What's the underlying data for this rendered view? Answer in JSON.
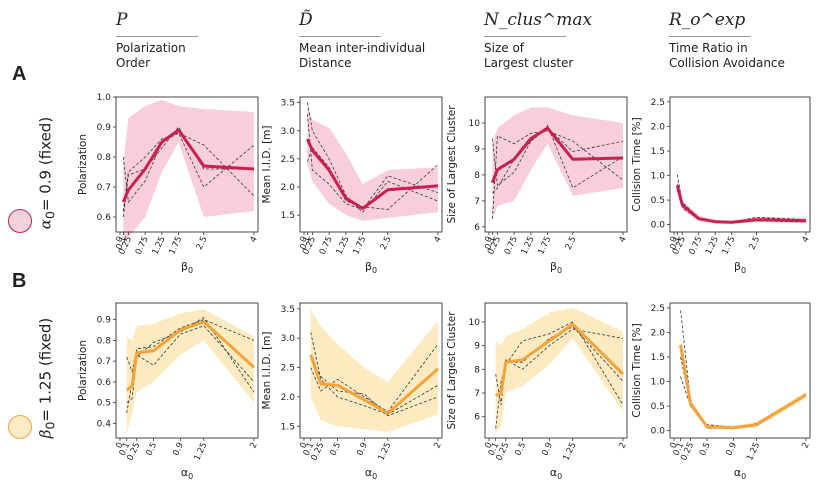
{
  "headers": [
    {
      "symbol": "P",
      "desc": "Polarization\nOrder"
    },
    {
      "symbol": "D̃",
      "desc": "Mean inter-individual\nDistance"
    },
    {
      "symbol": "N_clus^max",
      "desc": "Size of\nLargest cluster"
    },
    {
      "symbol": "R_o^exp",
      "desc": "Time Ratio in\nCollision Avoidance"
    }
  ],
  "rows": [
    {
      "letter": "A",
      "side_greek": "α",
      "side_sub": "0",
      "side_text": "= 0.9 (fixed)",
      "color": "#cc1f4e",
      "band": "#f7c6d3",
      "circle_fill": "#f4d2db"
    },
    {
      "letter": "B",
      "side_greek": "β",
      "side_sub": "0",
      "side_text": "= 1.25 (fixed)",
      "color": "#f5a33c",
      "band": "#fbe7b5",
      "circle_fill": "#fdebc4"
    }
  ],
  "chart_data": [
    {
      "type": "line",
      "row": 0,
      "col": 0,
      "ylabel": "Polarization",
      "xlabel": "β0",
      "ylim": [
        0.55,
        1.0
      ],
      "yticks": [
        0.6,
        0.7,
        0.8,
        0.9,
        1.0
      ],
      "x": [
        0.1,
        0.25,
        0.75,
        1.25,
        1.75,
        2.5,
        4
      ],
      "xticklabels": [
        "0",
        "0.1",
        "0.25",
        "0.75",
        "1.25",
        "1.75",
        "2.5",
        "4"
      ],
      "xtickpos": [
        0,
        0.1,
        0.25,
        0.75,
        1.25,
        1.75,
        2.5,
        4
      ],
      "mean": [
        0.65,
        0.69,
        0.76,
        0.85,
        0.89,
        0.77,
        0.76
      ],
      "band_upper": [
        0.78,
        0.93,
        0.97,
        0.99,
        0.97,
        0.96,
        0.95
      ],
      "band_lower": [
        0.53,
        0.53,
        0.6,
        0.75,
        0.85,
        0.6,
        0.62
      ],
      "dashed": [
        [
          0.62,
          0.75,
          0.8,
          0.86,
          0.88,
          0.84,
          0.67
        ],
        [
          0.8,
          0.65,
          0.72,
          0.85,
          0.88,
          0.7,
          0.84
        ],
        [
          0.6,
          0.74,
          0.76,
          0.83,
          0.9,
          0.76,
          0.76
        ]
      ]
    },
    {
      "type": "line",
      "row": 0,
      "col": 1,
      "ylabel": "Mean I.I.D. [m]",
      "xlabel": "β0",
      "ylim": [
        1.2,
        3.6
      ],
      "yticks": [
        1.5,
        2.0,
        2.5,
        3.0,
        3.5
      ],
      "x": [
        0.1,
        0.25,
        0.75,
        1.25,
        1.75,
        2.5,
        4
      ],
      "xticklabels": [
        "0",
        "0.1",
        "0.25",
        "0.75",
        "1.25",
        "1.75",
        "2.5",
        "4"
      ],
      "xtickpos": [
        0,
        0.1,
        0.25,
        0.75,
        1.25,
        1.75,
        2.5,
        4
      ],
      "mean": [
        2.85,
        2.65,
        2.3,
        1.8,
        1.62,
        1.95,
        2.02
      ],
      "band_upper": [
        3.45,
        3.2,
        3.05,
        2.6,
        2.05,
        2.3,
        2.35
      ],
      "band_lower": [
        2.4,
        2.1,
        1.7,
        1.5,
        1.4,
        1.45,
        1.55
      ],
      "dashed": [
        [
          3.5,
          3.0,
          2.5,
          1.85,
          1.55,
          2.1,
          1.75
        ],
        [
          2.45,
          2.7,
          2.35,
          1.75,
          1.65,
          1.6,
          2.4
        ],
        [
          3.3,
          2.3,
          2.05,
          1.7,
          1.6,
          2.2,
          1.9
        ]
      ]
    },
    {
      "type": "line",
      "row": 0,
      "col": 2,
      "ylabel": "Size of Largest Cluster",
      "xlabel": "β0",
      "ylim": [
        5.8,
        11
      ],
      "yticks": [
        6,
        7,
        8,
        9,
        10
      ],
      "x": [
        0.1,
        0.25,
        0.75,
        1.25,
        1.75,
        2.5,
        4
      ],
      "xticklabels": [
        "0",
        "0.1",
        "0.25",
        "0.75",
        "1.25",
        "1.75",
        "2.5",
        "4"
      ],
      "xtickpos": [
        0,
        0.1,
        0.25,
        0.75,
        1.25,
        1.75,
        2.5,
        4
      ],
      "mean": [
        7.7,
        8.2,
        8.6,
        9.4,
        9.8,
        8.6,
        8.65
      ],
      "band_upper": [
        9.2,
        9.8,
        10.3,
        10.6,
        10.6,
        10.3,
        10.0
      ],
      "band_lower": [
        6.3,
        6.8,
        7.0,
        8.2,
        9.2,
        7.2,
        7.5
      ],
      "dashed": [
        [
          6.3,
          9.5,
          9.2,
          9.6,
          9.7,
          9.3,
          7.8
        ],
        [
          9.4,
          7.6,
          8.1,
          9.3,
          9.9,
          7.5,
          8.7
        ],
        [
          7.3,
          7.5,
          8.6,
          9.3,
          9.8,
          8.9,
          9.3
        ]
      ]
    },
    {
      "type": "line",
      "row": 0,
      "col": 3,
      "ylabel": "Collision Time [%]",
      "xlabel": "β0",
      "ylim": [
        -0.15,
        2.6
      ],
      "yticks": [
        0.0,
        0.5,
        1.0,
        1.5,
        2.0,
        2.5
      ],
      "x": [
        0.1,
        0.25,
        0.75,
        1.25,
        1.75,
        2.5,
        4
      ],
      "xticklabels": [
        "0",
        "0.1",
        "0.25",
        "0.75",
        "1.25",
        "1.75",
        "2.5",
        "4"
      ],
      "xtickpos": [
        0,
        0.1,
        0.25,
        0.75,
        1.25,
        1.75,
        2.5,
        4
      ],
      "mean": [
        0.8,
        0.4,
        0.12,
        0.06,
        0.05,
        0.1,
        0.08
      ],
      "band_upper": [
        0.95,
        0.5,
        0.18,
        0.1,
        0.08,
        0.16,
        0.14
      ],
      "band_lower": [
        0.65,
        0.3,
        0.07,
        0.03,
        0.02,
        0.05,
        0.04
      ],
      "dashed": [
        [
          1.02,
          0.45,
          0.14,
          0.07,
          0.05,
          0.15,
          0.1
        ],
        [
          0.7,
          0.35,
          0.1,
          0.05,
          0.06,
          0.08,
          0.05
        ],
        [
          0.82,
          0.38,
          0.11,
          0.06,
          0.04,
          0.09,
          0.09
        ]
      ]
    },
    {
      "type": "line",
      "row": 1,
      "col": 0,
      "ylabel": "Polarization",
      "xlabel": "α0",
      "ylim": [
        0.33,
        0.98
      ],
      "yticks": [
        0.4,
        0.5,
        0.6,
        0.7,
        0.8,
        0.9
      ],
      "x": [
        0.1,
        0.18,
        0.25,
        0.5,
        0.9,
        1.25,
        2
      ],
      "xticklabels": [
        "0",
        "0.1",
        "0.25",
        "0.5",
        "0.9",
        "1.25",
        "2"
      ],
      "xtickpos": [
        0,
        0.1,
        0.25,
        0.5,
        0.9,
        1.25,
        2
      ],
      "mean": [
        0.56,
        0.58,
        0.74,
        0.75,
        0.85,
        0.89,
        0.67
      ],
      "band_upper": [
        0.82,
        0.8,
        0.87,
        0.88,
        0.93,
        0.95,
        0.82
      ],
      "band_lower": [
        0.35,
        0.45,
        0.55,
        0.6,
        0.73,
        0.8,
        0.5
      ],
      "dashed": [
        [
          0.72,
          0.65,
          0.76,
          0.77,
          0.86,
          0.9,
          0.8
        ],
        [
          0.45,
          0.6,
          0.73,
          0.68,
          0.83,
          0.87,
          0.6
        ],
        [
          0.5,
          0.52,
          0.72,
          0.79,
          0.84,
          0.91,
          0.55
        ]
      ]
    },
    {
      "type": "line",
      "row": 1,
      "col": 1,
      "ylabel": "Mean I.I.D. [m]",
      "xlabel": "α0",
      "ylim": [
        1.3,
        3.6
      ],
      "yticks": [
        1.5,
        2.0,
        2.5,
        3.0,
        3.5
      ],
      "x": [
        0.1,
        0.25,
        0.5,
        0.9,
        1.25,
        2
      ],
      "xticklabels": [
        "0",
        "0.1",
        "0.25",
        "0.5",
        "0.9",
        "1.25",
        "2"
      ],
      "xtickpos": [
        0,
        0.1,
        0.25,
        0.5,
        0.9,
        1.25,
        2
      ],
      "mean": [
        2.72,
        2.22,
        2.2,
        1.95,
        1.72,
        2.48
      ],
      "band_upper": [
        3.5,
        3.2,
        2.9,
        2.5,
        2.25,
        3.3
      ],
      "band_lower": [
        2.0,
        1.6,
        1.5,
        1.45,
        1.4,
        1.7
      ],
      "dashed": [
        [
          3.1,
          2.3,
          2.0,
          1.85,
          1.7,
          2.2
        ],
        [
          2.5,
          2.1,
          2.3,
          2.0,
          1.75,
          2.9
        ],
        [
          2.65,
          2.35,
          2.1,
          2.05,
          1.68,
          2.0
        ]
      ]
    },
    {
      "type": "line",
      "row": 1,
      "col": 2,
      "ylabel": "Size of Largest Cluster",
      "xlabel": "α0",
      "ylim": [
        5.1,
        10.8
      ],
      "yticks": [
        6,
        7,
        8,
        9,
        10
      ],
      "x": [
        0.1,
        0.18,
        0.25,
        0.5,
        0.9,
        1.25,
        2
      ],
      "xticklabels": [
        "0",
        "0.1",
        "0.25",
        "0.5",
        "0.9",
        "1.25",
        "2"
      ],
      "xtickpos": [
        0,
        0.1,
        0.25,
        0.5,
        0.9,
        1.25,
        2
      ],
      "mean": [
        6.9,
        7.0,
        8.3,
        8.4,
        9.2,
        9.9,
        7.8
      ],
      "band_upper": [
        9.2,
        9.0,
        9.4,
        9.7,
        10.4,
        10.6,
        9.6
      ],
      "band_lower": [
        5.3,
        5.6,
        7.0,
        7.3,
        8.2,
        9.3,
        6.2
      ],
      "dashed": [
        [
          5.5,
          7.5,
          8.2,
          9.2,
          9.5,
          10.0,
          6.5
        ],
        [
          7.8,
          6.5,
          8.4,
          8.0,
          9.0,
          9.7,
          9.3
        ],
        [
          6.9,
          7.1,
          8.3,
          8.3,
          9.3,
          9.8,
          7.5
        ]
      ]
    },
    {
      "type": "line",
      "row": 1,
      "col": 3,
      "ylabel": "Collision Time [%]",
      "xlabel": "α0",
      "ylim": [
        -0.15,
        2.6
      ],
      "yticks": [
        0.0,
        0.5,
        1.0,
        1.5,
        2.0,
        2.5
      ],
      "x": [
        0.1,
        0.25,
        0.5,
        0.9,
        1.25,
        2
      ],
      "xticklabels": [
        "0",
        "0.1",
        "0.25",
        "0.5",
        "0.9",
        "1.25",
        "2"
      ],
      "xtickpos": [
        0,
        0.1,
        0.25,
        0.5,
        0.9,
        1.25,
        2
      ],
      "mean": [
        1.75,
        0.55,
        0.08,
        0.06,
        0.12,
        0.73
      ],
      "band_upper": [
        1.95,
        0.65,
        0.14,
        0.1,
        0.18,
        0.8
      ],
      "band_lower": [
        1.55,
        0.45,
        0.03,
        0.03,
        0.07,
        0.66
      ],
      "dashed": [
        [
          2.45,
          0.6,
          0.05,
          0.05,
          0.15,
          0.75
        ],
        [
          1.1,
          0.5,
          0.12,
          0.07,
          0.1,
          0.72
        ],
        [
          1.5,
          0.52,
          0.07,
          0.06,
          0.13,
          0.74
        ]
      ]
    }
  ]
}
